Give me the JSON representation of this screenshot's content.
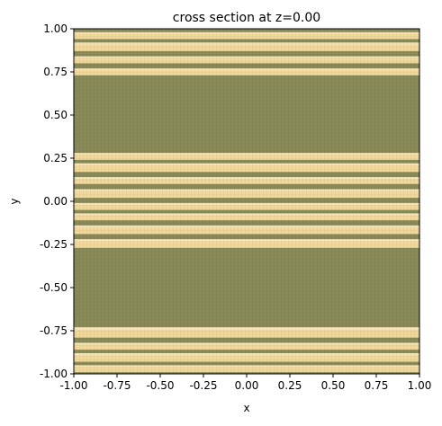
{
  "chart_data": {
    "type": "heatmap",
    "title": "cross section at z=0.00",
    "xlabel": "x",
    "ylabel": "y",
    "xlim": [
      -1.0,
      1.0
    ],
    "ylim": [
      -1.0,
      1.0
    ],
    "x_ticks": [
      "-1.00",
      "-0.75",
      "-0.50",
      "-0.25",
      "0.00",
      "0.25",
      "0.50",
      "0.75",
      "1.00"
    ],
    "y_ticks": [
      "-1.00",
      "-0.75",
      "-0.50",
      "-0.25",
      "0.00",
      "0.25",
      "0.50",
      "0.75",
      "1.00"
    ],
    "x_tick_values": [
      -1.0,
      -0.75,
      -0.5,
      -0.25,
      0.0,
      0.25,
      0.5,
      0.75,
      1.0
    ],
    "y_tick_values": [
      -1.0,
      -0.75,
      -0.5,
      -0.25,
      0.0,
      0.25,
      0.5,
      0.75,
      1.0
    ],
    "background_color": "#898a58",
    "band_color": "#f2d89a",
    "bands_y": [
      [
        -0.99,
        -0.95
      ],
      [
        -0.93,
        -0.88
      ],
      [
        -0.86,
        -0.82
      ],
      [
        -0.79,
        -0.73
      ],
      [
        -0.27,
        -0.22
      ],
      [
        -0.19,
        -0.14
      ],
      [
        -0.11,
        -0.07
      ],
      [
        -0.05,
        -0.01
      ],
      [
        0.02,
        0.07
      ],
      [
        0.1,
        0.14
      ],
      [
        0.17,
        0.22
      ],
      [
        0.24,
        0.28
      ],
      [
        0.73,
        0.77
      ],
      [
        0.8,
        0.84
      ],
      [
        0.87,
        0.92
      ],
      [
        0.94,
        0.98
      ]
    ],
    "grid": false
  }
}
